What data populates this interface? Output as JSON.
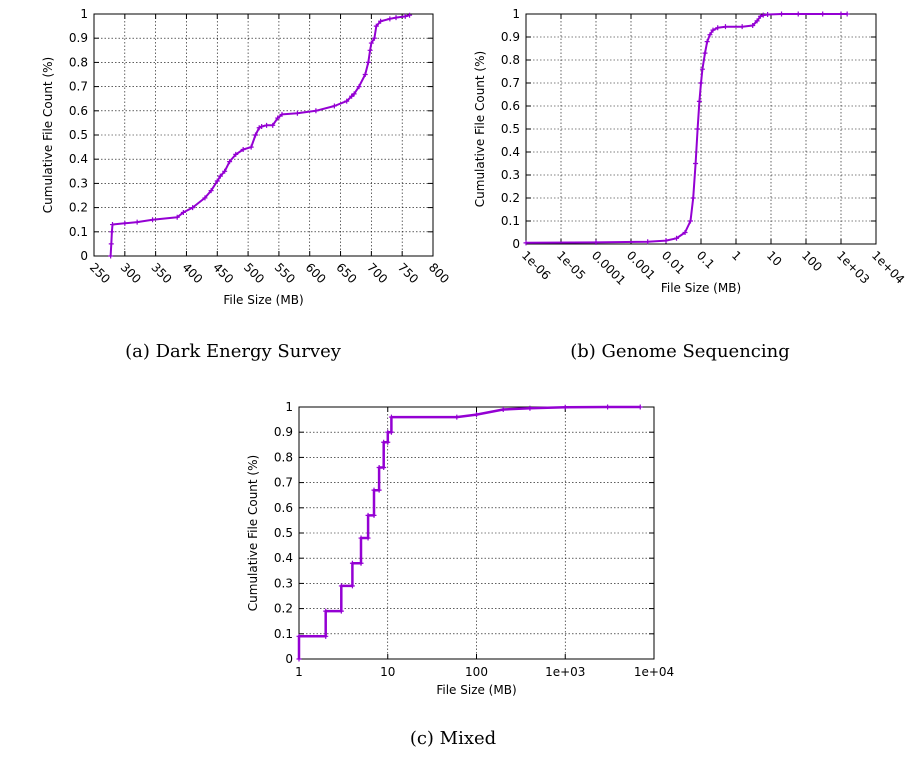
{
  "chart_data": [
    {
      "type": "line",
      "caption": "(a) Dark Energy Survey",
      "xlabel": "File Size (MB)",
      "ylabel": "Cumulative File Count (%)",
      "xscale": "linear",
      "xlim": [
        250,
        800
      ],
      "ylim": [
        0,
        1
      ],
      "xticks": [
        250,
        300,
        350,
        400,
        450,
        500,
        550,
        600,
        650,
        700,
        750,
        800
      ],
      "xticklabels": [
        "250",
        "300",
        "350",
        "400",
        "450",
        "500",
        "550",
        "600",
        "650",
        "700",
        "750",
        "800"
      ],
      "yticks": [
        0,
        0.1,
        0.2,
        0.3,
        0.4,
        0.5,
        0.6,
        0.7,
        0.8,
        0.9,
        1
      ],
      "yticklabels": [
        "0",
        "0.1",
        "0.2",
        "0.3",
        "0.4",
        "0.5",
        "0.6",
        "0.7",
        "0.8",
        "0.9",
        "1"
      ],
      "grid": true,
      "series": [
        {
          "color": "#9400d3",
          "x": [
            277,
            278,
            279,
            280,
            300,
            320,
            345,
            385,
            395,
            410,
            430,
            440,
            450,
            455,
            462,
            470,
            480,
            492,
            505,
            512,
            518,
            522,
            530,
            540,
            548,
            555,
            580,
            610,
            640,
            660,
            668,
            672,
            680,
            690,
            695,
            698,
            700,
            705,
            708,
            715,
            730,
            740,
            755,
            762
          ],
          "y": [
            0,
            0.05,
            0.1,
            0.13,
            0.135,
            0.14,
            0.15,
            0.16,
            0.18,
            0.2,
            0.24,
            0.27,
            0.31,
            0.33,
            0.35,
            0.39,
            0.42,
            0.44,
            0.45,
            0.5,
            0.53,
            0.535,
            0.54,
            0.54,
            0.57,
            0.585,
            0.59,
            0.6,
            0.62,
            0.64,
            0.66,
            0.67,
            0.7,
            0.75,
            0.8,
            0.85,
            0.88,
            0.9,
            0.95,
            0.97,
            0.98,
            0.985,
            0.99,
            0.995
          ]
        }
      ]
    },
    {
      "type": "line",
      "caption": "(b) Genome Sequencing",
      "xlabel": "File Size (MB)",
      "ylabel": "Cumulative File Count (%)",
      "xscale": "log",
      "xlim": [
        1e-06,
        10000
      ],
      "ylim": [
        0,
        1
      ],
      "xticks": [
        1e-06,
        1e-05,
        0.0001,
        0.001,
        0.01,
        0.1,
        1,
        10,
        100,
        1000,
        10000
      ],
      "xticklabels": [
        "1e-06",
        "1e-05",
        "0.0001",
        "0.001",
        "0.01",
        "0.1",
        "1",
        "10",
        "100",
        "1e+03",
        "1e+04"
      ],
      "yticks": [
        0,
        0.1,
        0.2,
        0.3,
        0.4,
        0.5,
        0.6,
        0.7,
        0.8,
        0.9,
        1
      ],
      "yticklabels": [
        "0",
        "0.1",
        "0.2",
        "0.3",
        "0.4",
        "0.5",
        "0.6",
        "0.7",
        "0.8",
        "0.9",
        "1"
      ],
      "grid": true,
      "series": [
        {
          "color": "#9400d3",
          "x": [
            1e-06,
            0.0001,
            0.003,
            0.01,
            0.02,
            0.035,
            0.05,
            0.06,
            0.07,
            0.08,
            0.09,
            0.1,
            0.11,
            0.13,
            0.15,
            0.18,
            0.22,
            0.3,
            0.5,
            1.5,
            3,
            4,
            5,
            6,
            8,
            20,
            60,
            300,
            1000,
            1500
          ],
          "y": [
            0.005,
            0.007,
            0.01,
            0.015,
            0.025,
            0.05,
            0.1,
            0.2,
            0.35,
            0.5,
            0.62,
            0.7,
            0.76,
            0.83,
            0.88,
            0.91,
            0.93,
            0.94,
            0.945,
            0.945,
            0.95,
            0.97,
            0.99,
            0.995,
            0.998,
            1.0,
            1.0,
            1.0,
            1.0,
            1.0
          ]
        }
      ]
    },
    {
      "type": "line",
      "caption": "(c) Mixed",
      "xlabel": "File Size (MB)",
      "ylabel": "Cumulative File Count (%)",
      "xscale": "log",
      "xlim": [
        1,
        10000
      ],
      "ylim": [
        0,
        1
      ],
      "xticks": [
        1,
        10,
        100,
        1000,
        10000
      ],
      "xticklabels": [
        "1",
        "10",
        "100",
        "1e+03",
        "1e+04"
      ],
      "yticks": [
        0,
        0.1,
        0.2,
        0.3,
        0.4,
        0.5,
        0.6,
        0.7,
        0.8,
        0.9,
        1
      ],
      "yticklabels": [
        "0",
        "0.1",
        "0.2",
        "0.3",
        "0.4",
        "0.5",
        "0.6",
        "0.7",
        "0.8",
        "0.9",
        "1"
      ],
      "grid": true,
      "series": [
        {
          "color": "#9400d3",
          "x": [
            1,
            1,
            2,
            2,
            3,
            3,
            4,
            4,
            5,
            5,
            6,
            6,
            7,
            7,
            8,
            8,
            9,
            9,
            10,
            10,
            11,
            11,
            60,
            100,
            200,
            400,
            1000,
            3000,
            7000
          ],
          "y": [
            0,
            0.09,
            0.09,
            0.19,
            0.19,
            0.29,
            0.29,
            0.38,
            0.38,
            0.48,
            0.48,
            0.57,
            0.57,
            0.67,
            0.67,
            0.76,
            0.76,
            0.86,
            0.86,
            0.9,
            0.9,
            0.96,
            0.96,
            0.97,
            0.99,
            0.995,
            0.999,
            1.0,
            1.0
          ]
        }
      ]
    }
  ]
}
